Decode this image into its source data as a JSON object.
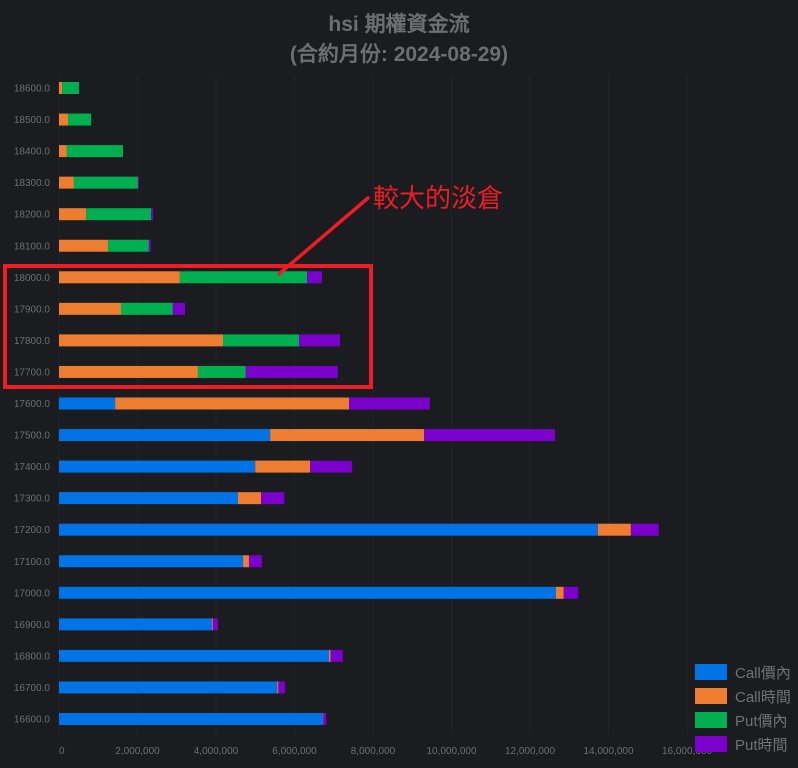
{
  "chart_data": {
    "type": "bar",
    "orientation": "horizontal",
    "stacked": true,
    "title": "hsi 期權資金流",
    "subtitle": "(合約月份: 2024-08-29)",
    "categories": [
      "18600.0",
      "18500.0",
      "18400.0",
      "18300.0",
      "18200.0",
      "18100.0",
      "18000.0",
      "17900.0",
      "17800.0",
      "17700.0",
      "17600.0",
      "17500.0",
      "17400.0",
      "17300.0",
      "17200.0",
      "17100.0",
      "17000.0",
      "16900.0",
      "16800.0",
      "16700.0",
      "16600.0"
    ],
    "series": [
      {
        "name": "Call價內",
        "color": "#0073e6",
        "values": [
          0,
          0,
          0,
          0,
          0,
          0,
          0,
          0,
          0,
          0,
          1430000,
          5380000,
          5000000,
          4560000,
          13730000,
          4690000,
          12660000,
          3900000,
          6880000,
          5560000,
          6720000
        ]
      },
      {
        "name": "Call時間",
        "color": "#ed7d31",
        "values": [
          80000,
          230000,
          200000,
          380000,
          690000,
          1250000,
          3080000,
          1580000,
          4180000,
          3540000,
          5960000,
          3920000,
          1400000,
          590000,
          840000,
          150000,
          200000,
          20000,
          40000,
          30000,
          10000
        ]
      },
      {
        "name": "Put價內",
        "color": "#00b050",
        "values": [
          430000,
          590000,
          1430000,
          1630000,
          1660000,
          1040000,
          3240000,
          1320000,
          1940000,
          1220000,
          0,
          0,
          0,
          0,
          0,
          0,
          0,
          0,
          0,
          0,
          0
        ]
      },
      {
        "name": "Put時間",
        "color": "#7b00cc",
        "values": [
          0,
          0,
          0,
          20000,
          50000,
          50000,
          380000,
          310000,
          1040000,
          2340000,
          2060000,
          3340000,
          1070000,
          590000,
          710000,
          330000,
          370000,
          130000,
          310000,
          170000,
          80000
        ]
      }
    ],
    "xlim": [
      0,
      16000000
    ],
    "xticks": [
      "0",
      "2,000,000",
      "4,000,000",
      "6,000,000",
      "8,000,000",
      "10,000,000",
      "12,000,000",
      "14,000,000",
      "16,000,000"
    ],
    "grid": true,
    "legend": "bottom-right",
    "annotation": {
      "text": "較大的淡倉",
      "color": "#ee1c24",
      "highlight": [
        "18000.0",
        "17900.0",
        "17800.0",
        "17700.0"
      ]
    }
  }
}
